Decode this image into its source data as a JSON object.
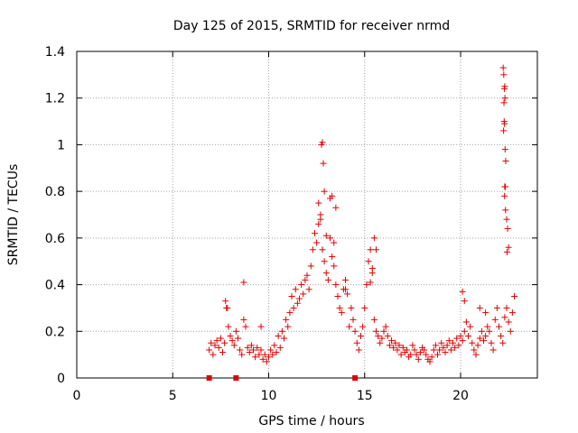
{
  "chart_data": {
    "type": "scatter",
    "title": "Day 125 of 2015, SRMTID for receiver nrmd",
    "xlabel": "GPS time / hours",
    "ylabel": "SRMTID / TECUs",
    "xlim": [
      0,
      24
    ],
    "ylim": [
      0,
      1.4
    ],
    "xticks": [
      0,
      5,
      10,
      15,
      20
    ],
    "xtick_labels": [
      "0",
      "5",
      "10",
      "15",
      "20"
    ],
    "yticks": [
      0,
      0.2,
      0.4,
      0.6,
      0.8,
      1,
      1.2,
      1.4
    ],
    "ytick_labels": [
      "0",
      "0.2",
      "0.4",
      "0.6",
      "0.8",
      "1",
      "1.2",
      "1.4"
    ],
    "grid": true,
    "marker": "+",
    "color": "#e00000",
    "series": [
      {
        "name": "SRMTID",
        "x": [
          6.9,
          7.0,
          7.1,
          7.2,
          7.3,
          7.4,
          7.5,
          7.6,
          7.7,
          7.8,
          7.9,
          8.0,
          8.1,
          8.2,
          8.3,
          8.4,
          8.5,
          8.6,
          8.7,
          8.8,
          8.9,
          9.0,
          9.1,
          9.2,
          9.3,
          9.4,
          9.5,
          9.6,
          9.7,
          9.8,
          9.9,
          10.0,
          10.1,
          10.2,
          10.3,
          10.4,
          10.5,
          10.6,
          10.7,
          10.8,
          10.9,
          11.0,
          11.1,
          11.2,
          11.3,
          11.4,
          11.5,
          11.6,
          11.7,
          11.8,
          11.9,
          12.0,
          12.1,
          12.2,
          12.3,
          12.4,
          12.5,
          12.6,
          12.7,
          12.8,
          12.9,
          13.0,
          13.1,
          13.2,
          13.3,
          13.4,
          13.5,
          13.6,
          13.7,
          13.8,
          13.9,
          14.0,
          14.1,
          14.2,
          14.3,
          14.4,
          14.5,
          14.6,
          14.7,
          14.8,
          14.9,
          15.0,
          15.1,
          15.2,
          15.3,
          15.4,
          15.5,
          15.6,
          15.7,
          15.8,
          15.9,
          16.0,
          16.1,
          16.2,
          16.3,
          16.4,
          16.5,
          16.6,
          16.7,
          16.8,
          16.9,
          17.0,
          17.1,
          17.2,
          17.3,
          17.4,
          17.5,
          17.6,
          17.7,
          17.8,
          17.9,
          18.0,
          18.1,
          18.2,
          18.3,
          18.4,
          18.5,
          18.6,
          18.7,
          18.8,
          18.9,
          19.0,
          19.1,
          19.2,
          19.3,
          19.4,
          19.5,
          19.6,
          19.7,
          19.8,
          19.9,
          20.0,
          20.1,
          20.2,
          20.3,
          20.4,
          20.5,
          20.6,
          20.7,
          20.8,
          20.9,
          21.0,
          21.1,
          21.2,
          21.3,
          21.4,
          21.5,
          21.6,
          21.7,
          21.8,
          21.9,
          22.0,
          22.1,
          22.2,
          22.3,
          22.4,
          22.5,
          22.6,
          22.7,
          22.8,
          12.75,
          12.8,
          12.85,
          12.9,
          12.7,
          12.6,
          13.3,
          13.5,
          13.2,
          13.0,
          13.4,
          14.0,
          15.5,
          15.6,
          15.4,
          15.3,
          8.7,
          7.75,
          7.85,
          9.6,
          22.22,
          22.25,
          22.3,
          22.28,
          22.31,
          22.26,
          22.27,
          22.29,
          22.24,
          22.32,
          22.35,
          22.3,
          22.33,
          22.29,
          22.34,
          22.4,
          22.45,
          22.5,
          22.42,
          20.1,
          20.2,
          21.0,
          21.3
        ],
        "y": [
          0.12,
          0.15,
          0.1,
          0.14,
          0.16,
          0.13,
          0.17,
          0.11,
          0.15,
          0.3,
          0.22,
          0.18,
          0.16,
          0.14,
          0.2,
          0.17,
          0.12,
          0.1,
          0.25,
          0.22,
          0.13,
          0.11,
          0.14,
          0.12,
          0.09,
          0.13,
          0.1,
          0.12,
          0.08,
          0.1,
          0.07,
          0.09,
          0.12,
          0.1,
          0.14,
          0.11,
          0.18,
          0.13,
          0.2,
          0.17,
          0.25,
          0.22,
          0.28,
          0.35,
          0.3,
          0.38,
          0.32,
          0.34,
          0.4,
          0.36,
          0.42,
          0.44,
          0.38,
          0.48,
          0.55,
          0.62,
          0.58,
          0.66,
          0.7,
          0.55,
          0.5,
          0.45,
          0.42,
          0.6,
          0.52,
          0.48,
          0.4,
          0.35,
          0.3,
          0.28,
          0.38,
          0.42,
          0.36,
          0.22,
          0.3,
          0.25,
          0.2,
          0.15,
          0.12,
          0.18,
          0.22,
          0.3,
          0.4,
          0.5,
          0.55,
          0.45,
          0.25,
          0.2,
          0.18,
          0.15,
          0.17,
          0.2,
          0.22,
          0.18,
          0.14,
          0.16,
          0.13,
          0.15,
          0.12,
          0.14,
          0.1,
          0.13,
          0.11,
          0.12,
          0.09,
          0.1,
          0.14,
          0.12,
          0.1,
          0.08,
          0.11,
          0.13,
          0.12,
          0.1,
          0.08,
          0.07,
          0.09,
          0.12,
          0.14,
          0.1,
          0.12,
          0.15,
          0.13,
          0.11,
          0.14,
          0.16,
          0.12,
          0.15,
          0.13,
          0.17,
          0.14,
          0.18,
          0.16,
          0.2,
          0.24,
          0.18,
          0.22,
          0.15,
          0.12,
          0.1,
          0.14,
          0.17,
          0.2,
          0.16,
          0.18,
          0.22,
          0.2,
          0.15,
          0.12,
          0.25,
          0.3,
          0.22,
          0.18,
          0.15,
          0.26,
          0.3,
          0.24,
          0.2,
          0.28,
          0.35,
          1.0,
          1.01,
          0.92,
          0.8,
          0.68,
          0.75,
          0.78,
          0.73,
          0.77,
          0.61,
          0.58,
          0.38,
          0.6,
          0.55,
          0.47,
          0.41,
          0.41,
          0.33,
          0.3,
          0.22,
          1.33,
          1.3,
          1.25,
          1.24,
          1.2,
          1.18,
          1.1,
          1.09,
          1.06,
          0.98,
          0.93,
          0.82,
          0.82,
          0.78,
          0.72,
          0.68,
          0.64,
          0.56,
          0.54,
          0.37,
          0.33,
          0.3,
          0.28
        ]
      }
    ],
    "zero_markers_x": [
      6.9,
      8.3,
      14.5
    ]
  }
}
